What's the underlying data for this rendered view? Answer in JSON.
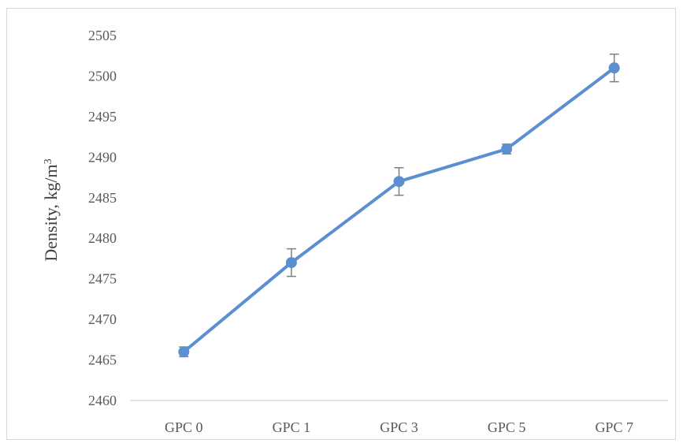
{
  "chart_data": {
    "type": "line",
    "title": "",
    "xlabel": "",
    "ylabel": "Density, kg/m",
    "ylabel_superscript": "3",
    "categories": [
      "GPC 0",
      "GPC 1",
      "GPC 3",
      "GPC 5",
      "GPC 7"
    ],
    "series": [
      {
        "values": [
          2466,
          2477,
          2487,
          2491,
          2501
        ],
        "error": [
          0.6,
          1.7,
          1.7,
          0.6,
          1.7
        ],
        "color": "#5b8fd0",
        "marker": "circle"
      }
    ],
    "ylim": [
      2460,
      2505
    ],
    "yticks": [
      2460,
      2465,
      2470,
      2475,
      2480,
      2485,
      2490,
      2495,
      2500,
      2505
    ],
    "error_bar_color": "#7f7f7f",
    "axis_color": "#d9d9d9",
    "grid": false,
    "legend": "none"
  }
}
